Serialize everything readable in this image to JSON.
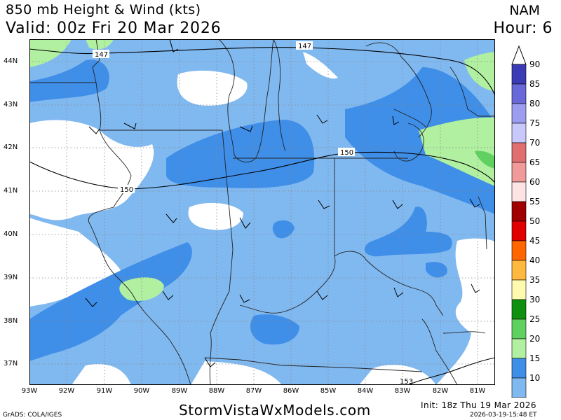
{
  "header": {
    "title": "850 mb Height & Wind (kts)",
    "valid": "Valid: 00z Fri 20 Mar 2026",
    "model": "NAM",
    "hour": "Hour: 6"
  },
  "map": {
    "lat_labels": [
      "44N",
      "43N",
      "42N",
      "41N",
      "40N",
      "39N",
      "38N",
      "37N"
    ],
    "lon_labels": [
      "93W",
      "92W",
      "91W",
      "90W",
      "89W",
      "88W",
      "87W",
      "86W",
      "85W",
      "84W",
      "83W",
      "82W",
      "81W"
    ],
    "contours": [
      {
        "label": "147"
      },
      {
        "label": "147"
      },
      {
        "label": "150"
      },
      {
        "label": "150"
      },
      {
        "label": "153"
      }
    ]
  },
  "colorbar": {
    "labels": [
      "90",
      "85",
      "80",
      "75",
      "70",
      "65",
      "60",
      "55",
      "50",
      "45",
      "40",
      "35",
      "30",
      "25",
      "20",
      "15",
      "10"
    ],
    "colors": [
      "#3b3bb5",
      "#6868d8",
      "#9c9cf0",
      "#c8c8fa",
      "#e07070",
      "#f09a9a",
      "#fde4e4",
      "#a00000",
      "#e00000",
      "#ff6600",
      "#ffb840",
      "#fffab0",
      "#109010",
      "#60d060",
      "#b0f0a0",
      "#3f8ee8",
      "#80b8f0"
    ]
  },
  "footer": {
    "site": "StormVistaWxModels.com",
    "init": "Init: 18z Thu 19 Mar 2026",
    "grads": "GrADS: COLA/IGES",
    "stamp": "2026-03-19-15:48 ET"
  }
}
